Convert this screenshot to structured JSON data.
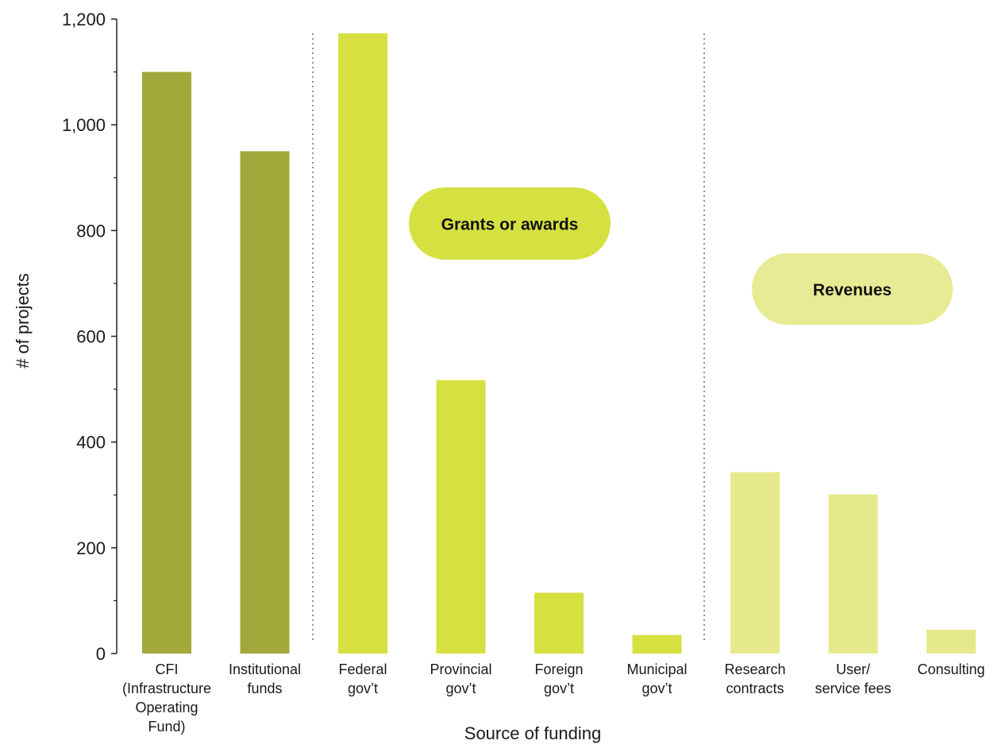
{
  "chart_data": {
    "type": "bar",
    "title": "",
    "xlabel": "Source of funding",
    "ylabel": "# of projects",
    "ylim": [
      0,
      1200
    ],
    "yticks": [
      0,
      200,
      400,
      600,
      800,
      1000,
      1200
    ],
    "ytick_labels": [
      "0",
      "200",
      "400",
      "600",
      "800",
      "1,000",
      "1,200"
    ],
    "grid": false,
    "categories": [
      [
        "CFI",
        "(Infrastructure",
        "Operating",
        "Fund)"
      ],
      [
        "Institutional",
        "funds"
      ],
      [
        "Federal",
        "gov’t"
      ],
      [
        "Provincial",
        "gov’t"
      ],
      [
        "Foreign",
        "gov’t"
      ],
      [
        "Municipal",
        "gov’t"
      ],
      [
        "Research",
        "contracts"
      ],
      [
        "User/",
        "service fees"
      ],
      [
        "Consulting"
      ]
    ],
    "values": [
      1100,
      950,
      1173,
      517,
      115,
      35,
      343,
      301,
      45
    ],
    "bar_groups": [
      "institutional",
      "institutional",
      "grants",
      "grants",
      "grants",
      "grants",
      "revenues",
      "revenues",
      "revenues"
    ],
    "group_labels": {
      "grants": "Grants or awards",
      "revenues": "Revenues"
    },
    "colors": {
      "institutional": "#a2a93a",
      "grants": "#d6e041",
      "revenues": "#e5e98c",
      "grants_pill": "#d6e041",
      "revenues_pill": "#e7eb94",
      "axis": "#222222",
      "divider": "#777777"
    }
  }
}
